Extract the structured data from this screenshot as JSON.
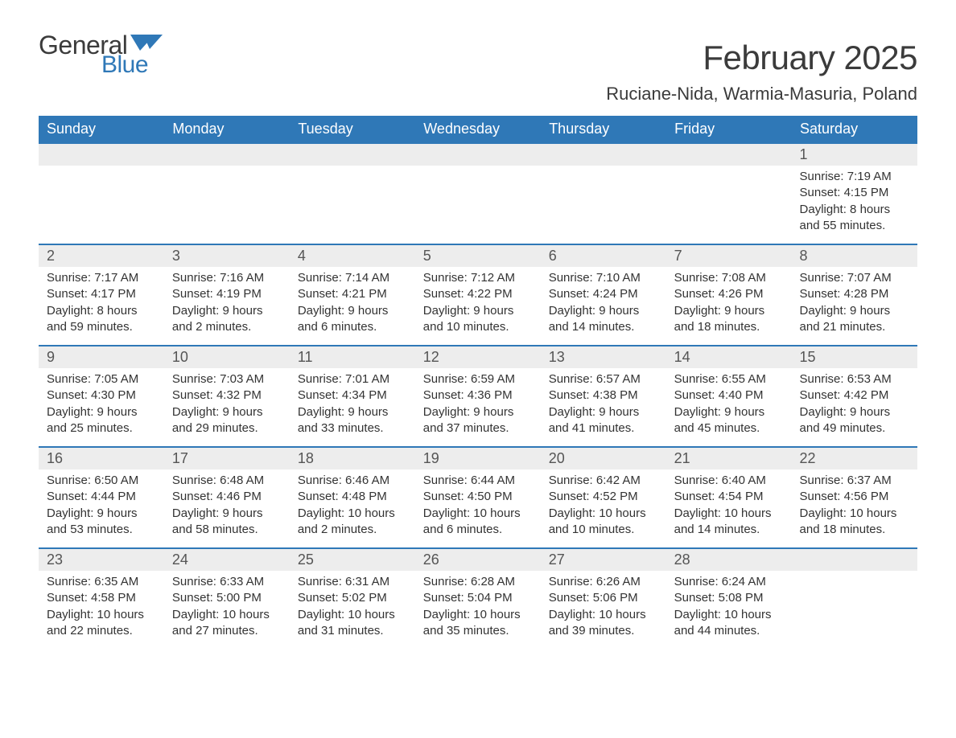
{
  "logo": {
    "text_general": "General",
    "text_blue": "Blue",
    "flag_color": "#2f78b7"
  },
  "header": {
    "title": "February 2025",
    "subtitle": "Ruciane-Nida, Warmia-Masuria, Poland",
    "title_fontsize": 42,
    "subtitle_fontsize": 22,
    "title_color": "#3b3b3b"
  },
  "calendar": {
    "type": "table",
    "header_bg": "#2f78b7",
    "header_fg": "#ffffff",
    "daynum_bg": "#ededed",
    "border_color": "#2f78b7",
    "text_color": "#333333",
    "body_fontsize": 15,
    "daynum_fontsize": 18,
    "columns": [
      "Sunday",
      "Monday",
      "Tuesday",
      "Wednesday",
      "Thursday",
      "Friday",
      "Saturday"
    ],
    "weeks": [
      [
        null,
        null,
        null,
        null,
        null,
        null,
        {
          "n": "1",
          "sunrise": "Sunrise: 7:19 AM",
          "sunset": "Sunset: 4:15 PM",
          "daylight": "Daylight: 8 hours and 55 minutes."
        }
      ],
      [
        {
          "n": "2",
          "sunrise": "Sunrise: 7:17 AM",
          "sunset": "Sunset: 4:17 PM",
          "daylight": "Daylight: 8 hours and 59 minutes."
        },
        {
          "n": "3",
          "sunrise": "Sunrise: 7:16 AM",
          "sunset": "Sunset: 4:19 PM",
          "daylight": "Daylight: 9 hours and 2 minutes."
        },
        {
          "n": "4",
          "sunrise": "Sunrise: 7:14 AM",
          "sunset": "Sunset: 4:21 PM",
          "daylight": "Daylight: 9 hours and 6 minutes."
        },
        {
          "n": "5",
          "sunrise": "Sunrise: 7:12 AM",
          "sunset": "Sunset: 4:22 PM",
          "daylight": "Daylight: 9 hours and 10 minutes."
        },
        {
          "n": "6",
          "sunrise": "Sunrise: 7:10 AM",
          "sunset": "Sunset: 4:24 PM",
          "daylight": "Daylight: 9 hours and 14 minutes."
        },
        {
          "n": "7",
          "sunrise": "Sunrise: 7:08 AM",
          "sunset": "Sunset: 4:26 PM",
          "daylight": "Daylight: 9 hours and 18 minutes."
        },
        {
          "n": "8",
          "sunrise": "Sunrise: 7:07 AM",
          "sunset": "Sunset: 4:28 PM",
          "daylight": "Daylight: 9 hours and 21 minutes."
        }
      ],
      [
        {
          "n": "9",
          "sunrise": "Sunrise: 7:05 AM",
          "sunset": "Sunset: 4:30 PM",
          "daylight": "Daylight: 9 hours and 25 minutes."
        },
        {
          "n": "10",
          "sunrise": "Sunrise: 7:03 AM",
          "sunset": "Sunset: 4:32 PM",
          "daylight": "Daylight: 9 hours and 29 minutes."
        },
        {
          "n": "11",
          "sunrise": "Sunrise: 7:01 AM",
          "sunset": "Sunset: 4:34 PM",
          "daylight": "Daylight: 9 hours and 33 minutes."
        },
        {
          "n": "12",
          "sunrise": "Sunrise: 6:59 AM",
          "sunset": "Sunset: 4:36 PM",
          "daylight": "Daylight: 9 hours and 37 minutes."
        },
        {
          "n": "13",
          "sunrise": "Sunrise: 6:57 AM",
          "sunset": "Sunset: 4:38 PM",
          "daylight": "Daylight: 9 hours and 41 minutes."
        },
        {
          "n": "14",
          "sunrise": "Sunrise: 6:55 AM",
          "sunset": "Sunset: 4:40 PM",
          "daylight": "Daylight: 9 hours and 45 minutes."
        },
        {
          "n": "15",
          "sunrise": "Sunrise: 6:53 AM",
          "sunset": "Sunset: 4:42 PM",
          "daylight": "Daylight: 9 hours and 49 minutes."
        }
      ],
      [
        {
          "n": "16",
          "sunrise": "Sunrise: 6:50 AM",
          "sunset": "Sunset: 4:44 PM",
          "daylight": "Daylight: 9 hours and 53 minutes."
        },
        {
          "n": "17",
          "sunrise": "Sunrise: 6:48 AM",
          "sunset": "Sunset: 4:46 PM",
          "daylight": "Daylight: 9 hours and 58 minutes."
        },
        {
          "n": "18",
          "sunrise": "Sunrise: 6:46 AM",
          "sunset": "Sunset: 4:48 PM",
          "daylight": "Daylight: 10 hours and 2 minutes."
        },
        {
          "n": "19",
          "sunrise": "Sunrise: 6:44 AM",
          "sunset": "Sunset: 4:50 PM",
          "daylight": "Daylight: 10 hours and 6 minutes."
        },
        {
          "n": "20",
          "sunrise": "Sunrise: 6:42 AM",
          "sunset": "Sunset: 4:52 PM",
          "daylight": "Daylight: 10 hours and 10 minutes."
        },
        {
          "n": "21",
          "sunrise": "Sunrise: 6:40 AM",
          "sunset": "Sunset: 4:54 PM",
          "daylight": "Daylight: 10 hours and 14 minutes."
        },
        {
          "n": "22",
          "sunrise": "Sunrise: 6:37 AM",
          "sunset": "Sunset: 4:56 PM",
          "daylight": "Daylight: 10 hours and 18 minutes."
        }
      ],
      [
        {
          "n": "23",
          "sunrise": "Sunrise: 6:35 AM",
          "sunset": "Sunset: 4:58 PM",
          "daylight": "Daylight: 10 hours and 22 minutes."
        },
        {
          "n": "24",
          "sunrise": "Sunrise: 6:33 AM",
          "sunset": "Sunset: 5:00 PM",
          "daylight": "Daylight: 10 hours and 27 minutes."
        },
        {
          "n": "25",
          "sunrise": "Sunrise: 6:31 AM",
          "sunset": "Sunset: 5:02 PM",
          "daylight": "Daylight: 10 hours and 31 minutes."
        },
        {
          "n": "26",
          "sunrise": "Sunrise: 6:28 AM",
          "sunset": "Sunset: 5:04 PM",
          "daylight": "Daylight: 10 hours and 35 minutes."
        },
        {
          "n": "27",
          "sunrise": "Sunrise: 6:26 AM",
          "sunset": "Sunset: 5:06 PM",
          "daylight": "Daylight: 10 hours and 39 minutes."
        },
        {
          "n": "28",
          "sunrise": "Sunrise: 6:24 AM",
          "sunset": "Sunset: 5:08 PM",
          "daylight": "Daylight: 10 hours and 44 minutes."
        },
        null
      ]
    ]
  }
}
